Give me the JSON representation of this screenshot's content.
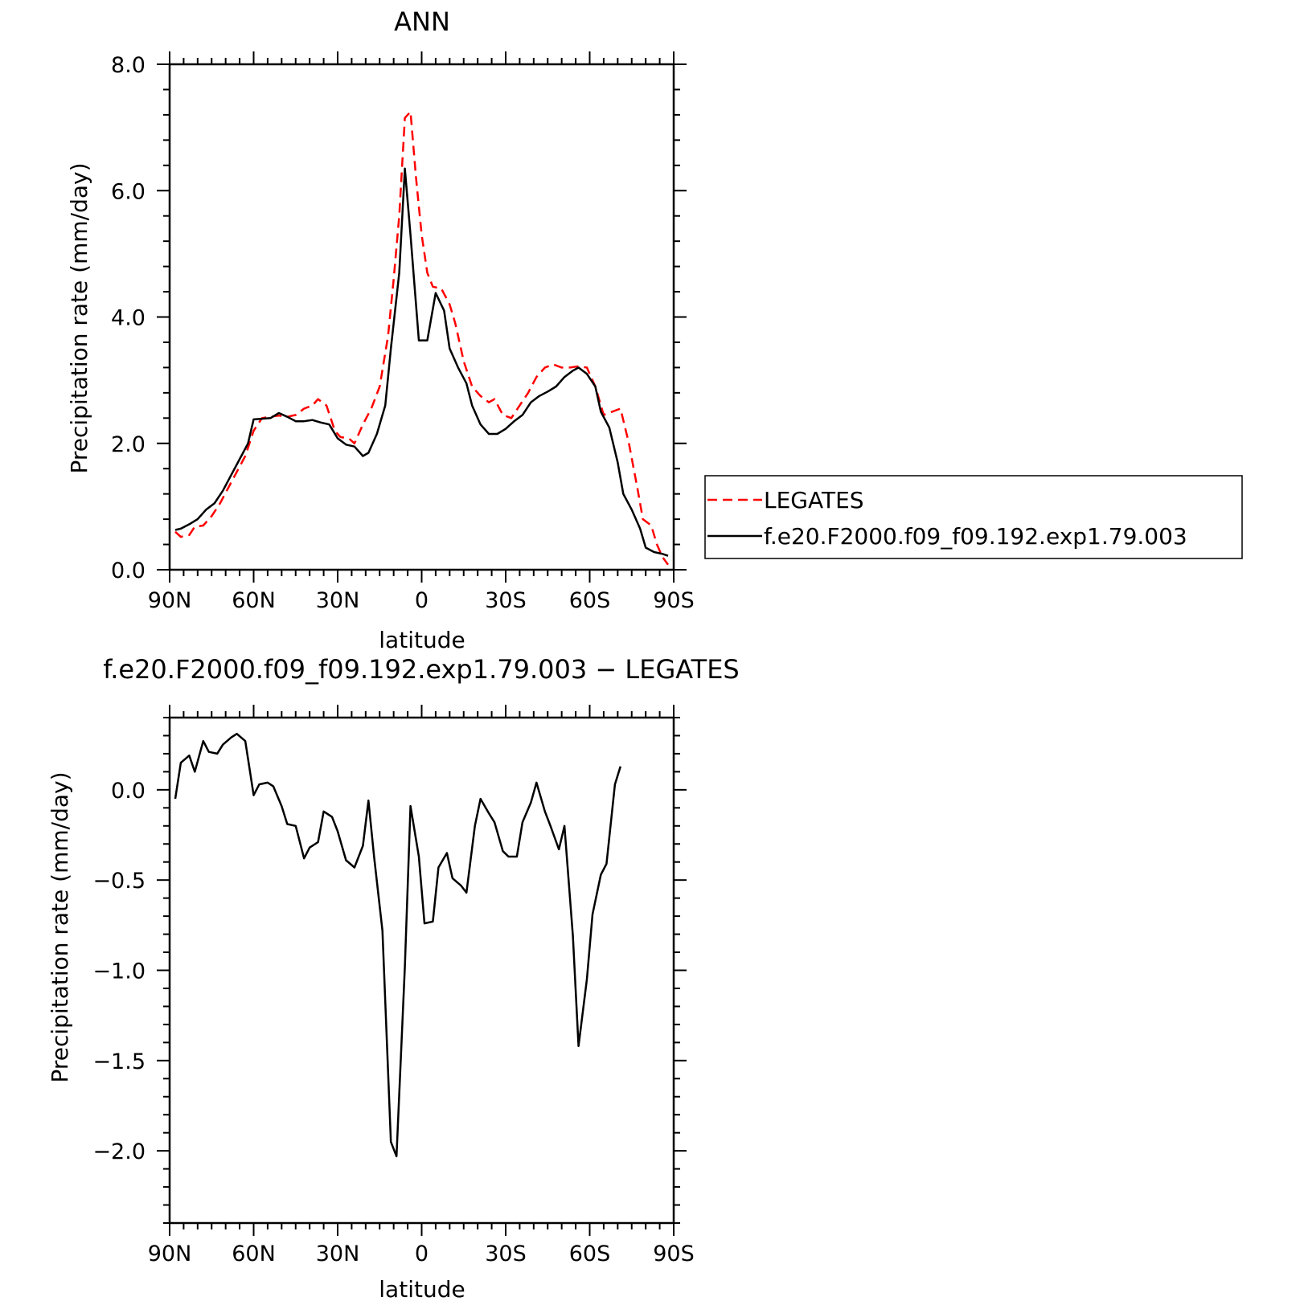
{
  "chart_data": [
    {
      "type": "line",
      "title": "ANN",
      "xlabel": "latitude",
      "ylabel": "Precipitation rate (mm/day)",
      "xlim": [
        90,
        -90
      ],
      "ylim": [
        0,
        8
      ],
      "xticks": [
        90,
        60,
        30,
        0,
        -30,
        -60,
        -90
      ],
      "xtick_labels": [
        "90N",
        "60N",
        "30N",
        "0",
        "30S",
        "60S",
        "90S"
      ],
      "yticks": [
        0,
        2,
        4,
        6,
        8
      ],
      "ytick_labels": [
        "0.0",
        "2.0",
        "4.0",
        "6.0",
        "8.0"
      ],
      "legend_position": "right",
      "series": [
        {
          "name": "LEGATES",
          "color": "#ff0000",
          "dash": "dashed",
          "points": [
            [
              88,
              0.6
            ],
            [
              86,
              0.52
            ],
            [
              83,
              0.55
            ],
            [
              81,
              0.68
            ],
            [
              78,
              0.7
            ],
            [
              75,
              0.85
            ],
            [
              72,
              1.05
            ],
            [
              69,
              1.3
            ],
            [
              66,
              1.55
            ],
            [
              63,
              1.8
            ],
            [
              60,
              2.2
            ],
            [
              57,
              2.4
            ],
            [
              54,
              2.42
            ],
            [
              51,
              2.44
            ],
            [
              48,
              2.42
            ],
            [
              45,
              2.45
            ],
            [
              42,
              2.55
            ],
            [
              39,
              2.6
            ],
            [
              37,
              2.7
            ],
            [
              34,
              2.6
            ],
            [
              31,
              2.2
            ],
            [
              29,
              2.1
            ],
            [
              26,
              2.08
            ],
            [
              24,
              2.0
            ],
            [
              21,
              2.3
            ],
            [
              18,
              2.55
            ],
            [
              15,
              2.9
            ],
            [
              12,
              3.7
            ],
            [
              10,
              4.6
            ],
            [
              8,
              5.6
            ],
            [
              6,
              7.15
            ],
            [
              4,
              7.25
            ],
            [
              2,
              6.2
            ],
            [
              0,
              5.3
            ],
            [
              -2,
              4.7
            ],
            [
              -4,
              4.48
            ],
            [
              -7,
              4.45
            ],
            [
              -10,
              4.2
            ],
            [
              -12,
              3.9
            ],
            [
              -15,
              3.3
            ],
            [
              -18,
              2.9
            ],
            [
              -21,
              2.75
            ],
            [
              -24,
              2.65
            ],
            [
              -26,
              2.7
            ],
            [
              -29,
              2.45
            ],
            [
              -32,
              2.4
            ],
            [
              -35,
              2.6
            ],
            [
              -38,
              2.8
            ],
            [
              -41,
              3.05
            ],
            [
              -44,
              3.2
            ],
            [
              -47,
              3.25
            ],
            [
              -50,
              3.2
            ],
            [
              -53,
              3.2
            ],
            [
              -56,
              3.22
            ],
            [
              -59,
              3.2
            ],
            [
              -62,
              2.9
            ],
            [
              -65,
              2.45
            ],
            [
              -68,
              2.5
            ],
            [
              -71,
              2.55
            ],
            [
              -74,
              2.0
            ],
            [
              -77,
              1.3
            ],
            [
              -79,
              0.8
            ],
            [
              -82,
              0.7
            ],
            [
              -84,
              0.4
            ],
            [
              -86,
              0.2
            ],
            [
              -88,
              0.08
            ]
          ]
        },
        {
          "name": "f.e20.F2000.f09_f09.192.exp1.79.003",
          "color": "#000000",
          "dash": "solid",
          "points": [
            [
              88,
              0.63
            ],
            [
              86,
              0.65
            ],
            [
              83,
              0.72
            ],
            [
              80,
              0.8
            ],
            [
              77,
              0.95
            ],
            [
              74,
              1.05
            ],
            [
              71,
              1.25
            ],
            [
              68,
              1.5
            ],
            [
              65,
              1.75
            ],
            [
              62,
              2.0
            ],
            [
              60,
              2.38
            ],
            [
              57,
              2.39
            ],
            [
              54,
              2.4
            ],
            [
              51,
              2.48
            ],
            [
              48,
              2.42
            ],
            [
              45,
              2.35
            ],
            [
              42,
              2.35
            ],
            [
              39,
              2.37
            ],
            [
              36,
              2.33
            ],
            [
              33,
              2.3
            ],
            [
              30,
              2.08
            ],
            [
              27,
              1.98
            ],
            [
              24,
              1.95
            ],
            [
              21,
              1.8
            ],
            [
              19,
              1.85
            ],
            [
              16,
              2.15
            ],
            [
              13,
              2.6
            ],
            [
              11,
              3.5
            ],
            [
              8,
              4.7
            ],
            [
              6,
              6.35
            ],
            [
              4,
              5.3
            ],
            [
              1,
              3.63
            ],
            [
              -2,
              3.63
            ],
            [
              -5,
              4.38
            ],
            [
              -8,
              4.1
            ],
            [
              -10,
              3.5
            ],
            [
              -13,
              3.2
            ],
            [
              -16,
              2.95
            ],
            [
              -18,
              2.6
            ],
            [
              -21,
              2.3
            ],
            [
              -24,
              2.15
            ],
            [
              -27,
              2.15
            ],
            [
              -30,
              2.23
            ],
            [
              -33,
              2.35
            ],
            [
              -36,
              2.45
            ],
            [
              -39,
              2.65
            ],
            [
              -42,
              2.75
            ],
            [
              -45,
              2.82
            ],
            [
              -48,
              2.9
            ],
            [
              -51,
              3.05
            ],
            [
              -54,
              3.15
            ],
            [
              -56,
              3.2
            ],
            [
              -59,
              3.1
            ],
            [
              -62,
              2.9
            ],
            [
              -64,
              2.5
            ],
            [
              -67,
              2.25
            ],
            [
              -70,
              1.7
            ],
            [
              -72,
              1.2
            ],
            [
              -75,
              0.95
            ],
            [
              -78,
              0.65
            ],
            [
              -80,
              0.35
            ],
            [
              -83,
              0.28
            ],
            [
              -86,
              0.25
            ],
            [
              -88,
              0.22
            ]
          ]
        }
      ]
    },
    {
      "type": "line",
      "title": "f.e20.F2000.f09_f09.192.exp1.79.003 − LEGATES",
      "xlabel": "latitude",
      "ylabel": "Precipitation rate (mm/day)",
      "xlim": [
        90,
        -90
      ],
      "ylim": [
        -2.4,
        0.4
      ],
      "xticks": [
        90,
        60,
        30,
        0,
        -30,
        -60,
        -90
      ],
      "xtick_labels": [
        "90N",
        "60N",
        "30N",
        "0",
        "30S",
        "60S",
        "90S"
      ],
      "yticks": [
        0,
        -0.5,
        -1.0,
        -1.5,
        -2.0
      ],
      "ytick_labels": [
        "0.0",
        "−0.5",
        "−1.0",
        "−1.5",
        "−2.0"
      ],
      "series": [
        {
          "name": "",
          "color": "#000000",
          "dash": "solid",
          "points": [
            [
              88,
              -0.05
            ],
            [
              86,
              0.15
            ],
            [
              83,
              0.19
            ],
            [
              81,
              0.1
            ],
            [
              78,
              0.27
            ],
            [
              76,
              0.21
            ],
            [
              73,
              0.2
            ],
            [
              71,
              0.25
            ],
            [
              68,
              0.29
            ],
            [
              66,
              0.31
            ],
            [
              63,
              0.27
            ],
            [
              60,
              -0.03
            ],
            [
              58,
              0.03
            ],
            [
              55,
              0.04
            ],
            [
              53,
              0.02
            ],
            [
              50,
              -0.09
            ],
            [
              48,
              -0.19
            ],
            [
              45,
              -0.2
            ],
            [
              42,
              -0.38
            ],
            [
              40,
              -0.32
            ],
            [
              37,
              -0.29
            ],
            [
              35,
              -0.12
            ],
            [
              32,
              -0.15
            ],
            [
              30,
              -0.23
            ],
            [
              27,
              -0.39
            ],
            [
              24,
              -0.43
            ],
            [
              21,
              -0.31
            ],
            [
              19,
              -0.06
            ],
            [
              17,
              -0.37
            ],
            [
              14,
              -0.78
            ],
            [
              11,
              -1.95
            ],
            [
              9,
              -2.03
            ],
            [
              6,
              -0.98
            ],
            [
              4,
              -0.09
            ],
            [
              1,
              -0.37
            ],
            [
              -1,
              -0.74
            ],
            [
              -4,
              -0.73
            ],
            [
              -6,
              -0.43
            ],
            [
              -9,
              -0.35
            ],
            [
              -11,
              -0.49
            ],
            [
              -14,
              -0.53
            ],
            [
              -16,
              -0.57
            ],
            [
              -19,
              -0.2
            ],
            [
              -21,
              -0.05
            ],
            [
              -24,
              -0.13
            ],
            [
              -26,
              -0.18
            ],
            [
              -29,
              -0.34
            ],
            [
              -31,
              -0.37
            ],
            [
              -34,
              -0.37
            ],
            [
              -36,
              -0.18
            ],
            [
              -39,
              -0.07
            ],
            [
              -41,
              0.04
            ],
            [
              -44,
              -0.12
            ],
            [
              -46,
              -0.2
            ],
            [
              -49,
              -0.33
            ],
            [
              -51,
              -0.2
            ],
            [
              -54,
              -0.81
            ],
            [
              -56,
              -1.42
            ],
            [
              -59,
              -1.05
            ],
            [
              -61,
              -0.69
            ],
            [
              -64,
              -0.47
            ],
            [
              -66,
              -0.41
            ],
            [
              -69,
              0.03
            ],
            [
              -71,
              0.13
            ]
          ]
        }
      ]
    }
  ]
}
